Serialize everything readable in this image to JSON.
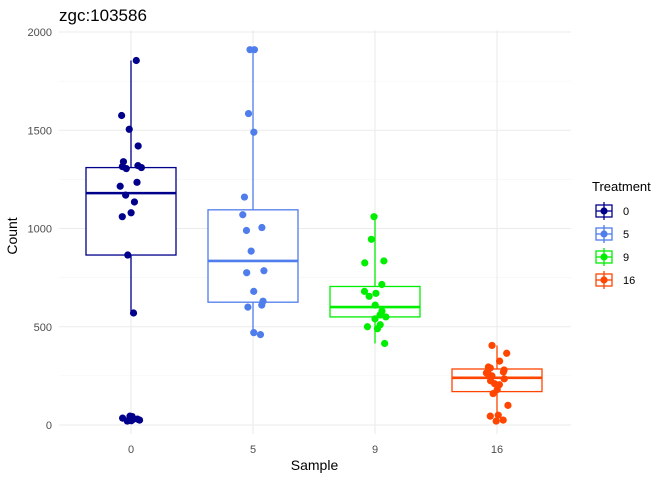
{
  "chart_data": {
    "type": "boxplot",
    "title": "zgc:103586",
    "xlabel": "Sample",
    "ylabel": "Count",
    "ylim": [
      -40,
      2050
    ],
    "yticks": [
      0,
      500,
      1000,
      1500,
      2000
    ],
    "categories": [
      "0",
      "5",
      "9",
      "16"
    ],
    "grid": true,
    "legend": {
      "title": "Treatment",
      "position": "right",
      "entries": [
        "0",
        "5",
        "9",
        "16"
      ]
    },
    "colors": [
      "#00008b",
      "#4f7dec",
      "#00ee00",
      "#ff4500"
    ],
    "series": [
      {
        "box": {
          "min": 570,
          "q1": 865,
          "median": 1180,
          "q3": 1310,
          "max": 1855
        },
        "outliers": [
          20,
          25,
          30,
          35,
          40,
          45
        ],
        "points": [
          1855,
          1575,
          1505,
          1420,
          1340,
          1320,
          1315,
          1310,
          1305,
          1235,
          1215,
          1170,
          1135,
          1080,
          1060,
          865,
          570,
          45,
          40,
          35,
          30,
          25,
          20
        ]
      },
      {
        "box": {
          "min": 460,
          "q1": 625,
          "median": 835,
          "q3": 1095,
          "max": 1910
        },
        "outliers": [],
        "points": [
          1910,
          1910,
          1585,
          1490,
          1160,
          1070,
          1005,
          990,
          885,
          785,
          775,
          680,
          630,
          610,
          600,
          470,
          460
        ]
      },
      {
        "box": {
          "min": 415,
          "q1": 550,
          "median": 600,
          "q3": 705,
          "max": 1060
        },
        "outliers": [],
        "points": [
          1060,
          945,
          835,
          825,
          715,
          680,
          670,
          655,
          610,
          580,
          560,
          550,
          540,
          510,
          500,
          490,
          415
        ]
      },
      {
        "box": {
          "min": 20,
          "q1": 170,
          "median": 240,
          "q3": 285,
          "max": 405
        },
        "outliers": [],
        "points": [
          405,
          365,
          325,
          295,
          290,
          280,
          270,
          265,
          260,
          250,
          235,
          225,
          210,
          205,
          180,
          160,
          100,
          50,
          45,
          25,
          20
        ]
      }
    ]
  }
}
